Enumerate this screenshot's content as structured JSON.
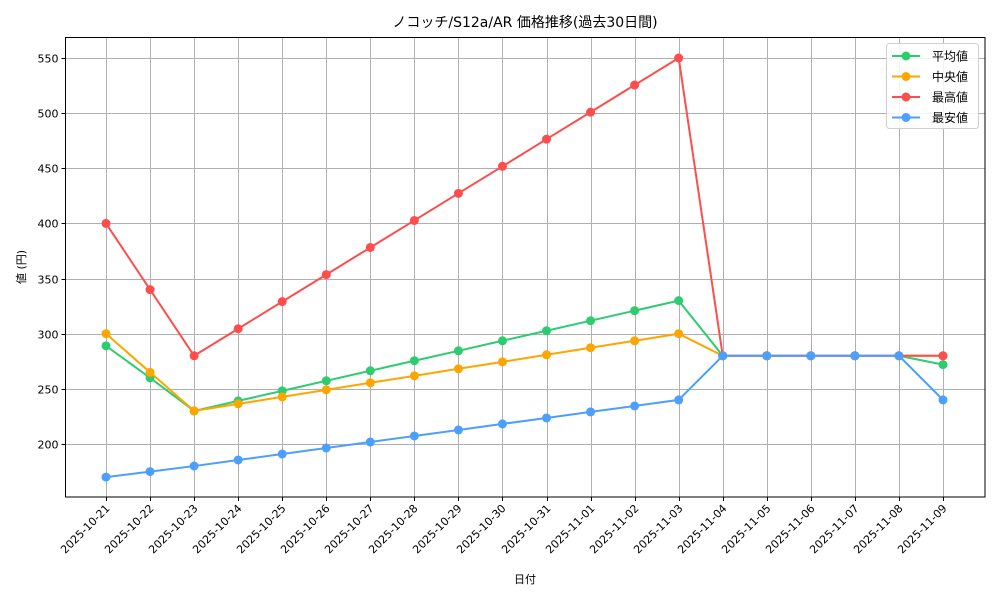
{
  "chart_data": {
    "type": "line",
    "title": "ノコッチ/S12a/AR 価格推移(過去30日間)",
    "xlabel": "日付",
    "ylabel": "値 (円)",
    "ylim": [
      150,
      568
    ],
    "yticks": [
      200,
      250,
      300,
      350,
      400,
      450,
      500,
      550
    ],
    "grid": true,
    "legend_position": "upper right",
    "categories": [
      "2025-10-21",
      "2025-10-22",
      "2025-10-23",
      "2025-10-24",
      "2025-10-25",
      "2025-10-26",
      "2025-10-27",
      "2025-10-28",
      "2025-10-29",
      "2025-10-30",
      "2025-10-31",
      "2025-11-01",
      "2025-11-02",
      "2025-11-03",
      "2025-11-04",
      "2025-11-05",
      "2025-11-06",
      "2025-11-07",
      "2025-11-08",
      "2025-11-09"
    ],
    "series": [
      {
        "name": "平均値",
        "color": "#2ecc71",
        "values": [
          289,
          260,
          230,
          239.1,
          248.2,
          257.3,
          266.4,
          275.5,
          284.5,
          293.6,
          302.7,
          311.8,
          320.9,
          330,
          280,
          280,
          280,
          280,
          280,
          272
        ]
      },
      {
        "name": "中央値",
        "color": "#ffa500",
        "values": [
          300,
          265,
          230,
          236.4,
          242.7,
          249.1,
          255.5,
          261.8,
          268.2,
          274.5,
          280.9,
          287.3,
          293.6,
          300,
          280,
          280,
          280,
          280,
          280,
          280
        ]
      },
      {
        "name": "最高値",
        "color": "#ff4d4d",
        "values": [
          400,
          340,
          280,
          304.5,
          329.1,
          353.6,
          378.2,
          402.7,
          427.3,
          451.8,
          476.4,
          500.9,
          525.5,
          550,
          280,
          280,
          280,
          280,
          280,
          280
        ]
      },
      {
        "name": "最安値",
        "color": "#4d9fff",
        "values": [
          170,
          175,
          180,
          185.5,
          190.9,
          196.4,
          201.8,
          207.3,
          212.7,
          218.2,
          223.6,
          229.1,
          234.5,
          240,
          280,
          280,
          280,
          280,
          280,
          240
        ]
      }
    ]
  }
}
